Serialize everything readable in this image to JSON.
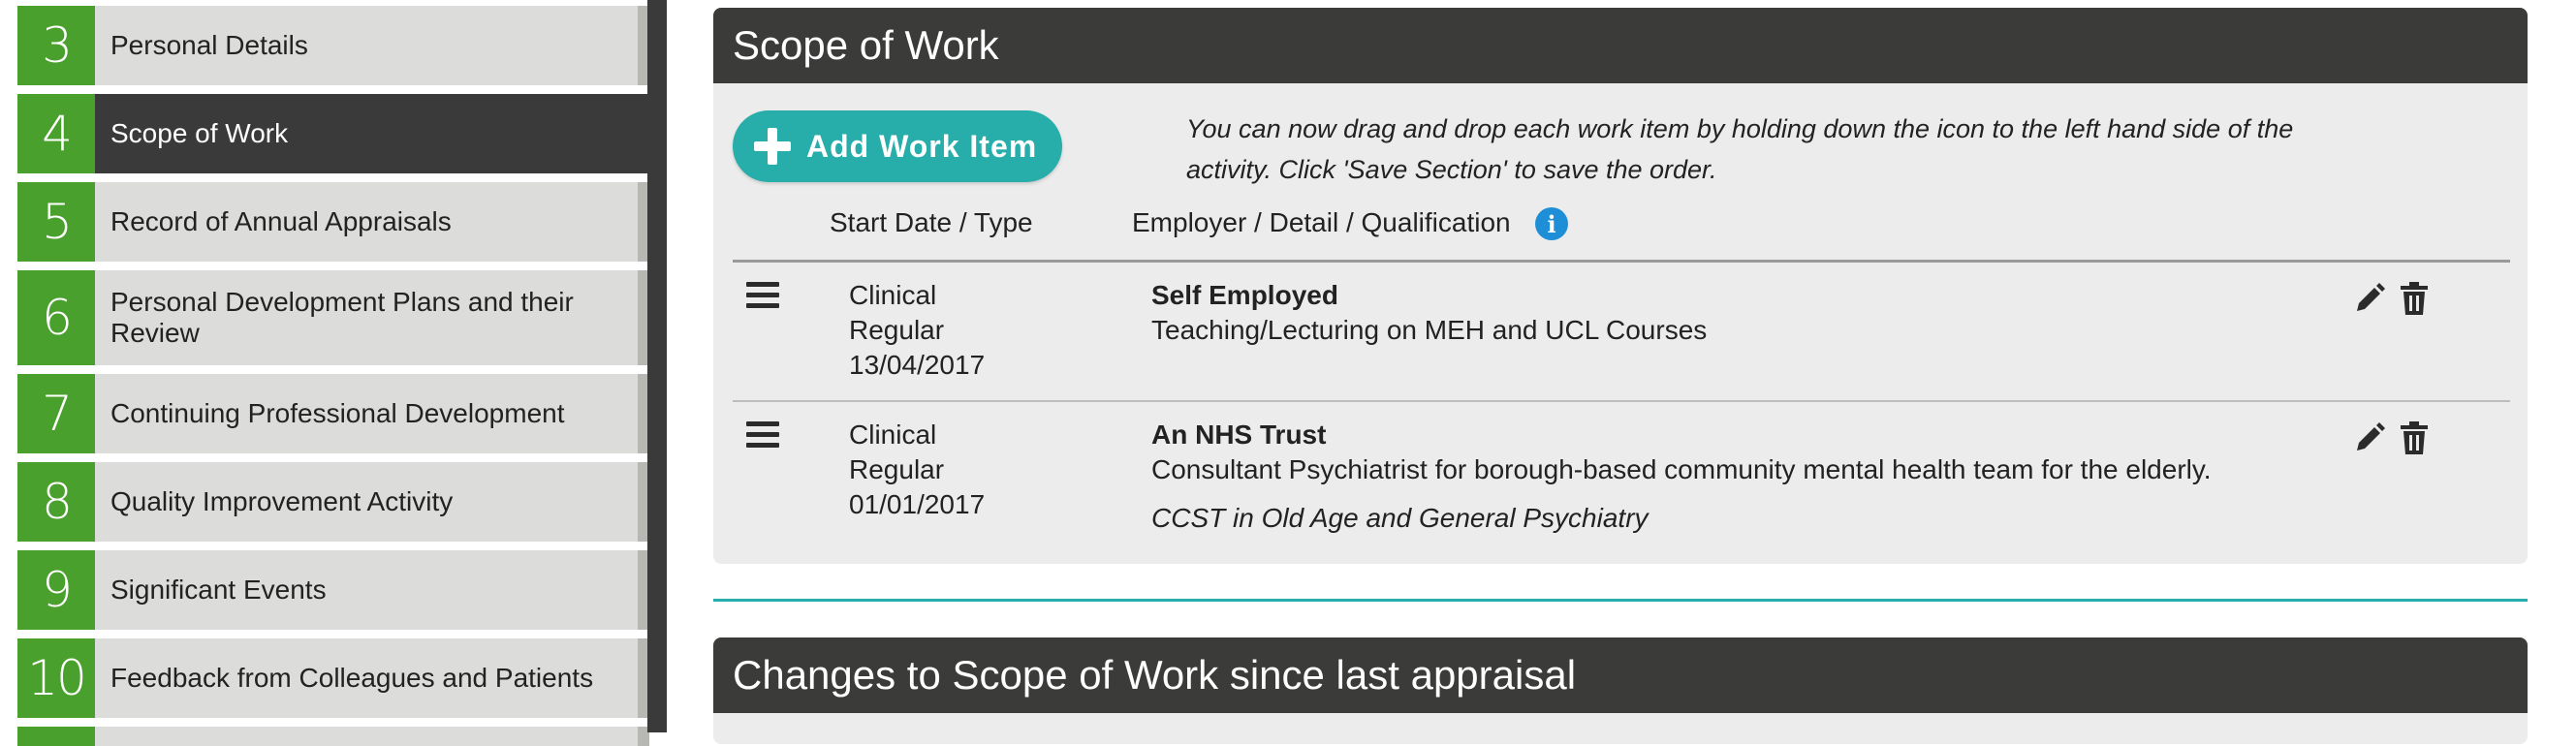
{
  "sidebar": {
    "items": [
      {
        "num": "3",
        "label": "Personal Details",
        "active": false
      },
      {
        "num": "4",
        "label": "Scope of Work",
        "active": true
      },
      {
        "num": "5",
        "label": "Record of Annual Appraisals",
        "active": false
      },
      {
        "num": "6",
        "label": "Personal Development Plans and their Review",
        "active": false
      },
      {
        "num": "7",
        "label": "Continuing Professional Development",
        "active": false
      },
      {
        "num": "8",
        "label": "Quality Improvement Activity",
        "active": false
      },
      {
        "num": "9",
        "label": "Significant Events",
        "active": false
      },
      {
        "num": "10",
        "label": "Feedback from Colleagues and Patients",
        "active": false
      }
    ]
  },
  "scope": {
    "title": "Scope of Work",
    "add_button_label": "Add Work Item",
    "drag_hint": "You can now drag and drop each work item by holding down the icon to the left hand side of the activity. Click 'Save Section' to save the order.",
    "col_start": "Start Date / Type",
    "col_employer": "Employer / Detail / Qualification",
    "rows": [
      {
        "type": "Clinical",
        "frequency": "Regular",
        "date": "13/04/2017",
        "employer": "Self Employed",
        "detail": "Teaching/Lecturing on MEH and UCL Courses",
        "qualification": ""
      },
      {
        "type": "Clinical",
        "frequency": "Regular",
        "date": "01/01/2017",
        "employer": "An NHS Trust",
        "detail": "Consultant Psychiatrist for borough-based community mental health team for the elderly.",
        "qualification": "CCST in Old Age and General Psychiatry"
      }
    ]
  },
  "changes": {
    "title": "Changes to Scope of Work since last appraisal"
  },
  "icons": {
    "add": "plus-icon",
    "info": "info-icon",
    "drag": "drag-handle-icon",
    "edit": "pencil-icon",
    "delete": "trash-icon"
  },
  "colors": {
    "accent_green": "#4aa02c",
    "accent_teal": "#27aeaa",
    "header_dark": "#3b3b3a",
    "info_blue": "#1e8fd6"
  }
}
